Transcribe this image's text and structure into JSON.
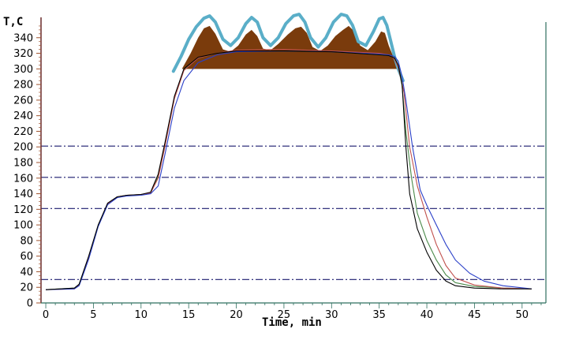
{
  "chart_data": {
    "type": "line",
    "title": "",
    "xlabel": "Time, min",
    "ylabel": "T,C",
    "xlim": [
      -0.5,
      52.5
    ],
    "ylim": [
      0,
      360
    ],
    "x_ticks": [
      0,
      5,
      10,
      15,
      20,
      25,
      30,
      35,
      40,
      45,
      50
    ],
    "y_ticks": [
      0,
      20,
      40,
      60,
      80,
      100,
      120,
      140,
      160,
      180,
      200,
      220,
      240,
      260,
      280,
      300,
      320,
      340
    ],
    "grid": false,
    "legend": "none",
    "reference_lines_y": [
      30,
      121,
      161,
      201
    ],
    "colors": {
      "curve_black": "#000000",
      "curve_blue": "#2a3fc8",
      "curve_red": "#c0504d",
      "curve_green": "#4a8a4a",
      "reference_line": "#1a1a6e",
      "fill_peaks": "#7a3b0c",
      "outline_wave": "#5aaec8"
    },
    "series": [
      {
        "key": "black",
        "x": [
          0,
          3,
          3.5,
          4.5,
          5.5,
          6.5,
          7.5,
          8.5,
          10,
          11,
          11.8,
          12.5,
          13.5,
          14.5,
          16,
          18,
          20,
          25,
          30,
          35,
          36,
          36.6,
          37,
          37.4,
          37.8,
          38.2,
          39,
          40,
          41,
          42,
          43,
          45,
          48,
          51
        ],
        "y": [
          17,
          19,
          24,
          60,
          100,
          128,
          136,
          138,
          139,
          142,
          165,
          205,
          265,
          300,
          315,
          320,
          323,
          323,
          322,
          318,
          317,
          314,
          305,
          280,
          200,
          140,
          95,
          65,
          42,
          28,
          22,
          19,
          18,
          18
        ]
      },
      {
        "key": "blue",
        "x": [
          0,
          3,
          3.5,
          4.5,
          5.5,
          6.5,
          7.5,
          8.5,
          10,
          11,
          11.8,
          12.5,
          13.5,
          14.5,
          16,
          18,
          20,
          25,
          30,
          35,
          36,
          36.6,
          37,
          37.4,
          37.8,
          38.5,
          39.3,
          40,
          41,
          42,
          43,
          44.5,
          46,
          48,
          51
        ],
        "y": [
          17,
          18,
          22,
          56,
          98,
          126,
          135,
          137,
          138,
          140,
          150,
          190,
          250,
          285,
          308,
          318,
          322,
          323,
          322,
          319,
          318,
          316,
          310,
          290,
          260,
          200,
          145,
          125,
          100,
          75,
          55,
          38,
          28,
          22,
          18
        ]
      },
      {
        "key": "red",
        "x": [
          0,
          3,
          3.5,
          4.5,
          5.5,
          6.5,
          7.5,
          8.5,
          10,
          11,
          11.8,
          12.5,
          13.5,
          14.5,
          16,
          18,
          20,
          25,
          30,
          35,
          36,
          36.6,
          37,
          37.6,
          38.2,
          39,
          40,
          41,
          42,
          43,
          45,
          48,
          51
        ],
        "y": [
          17,
          18,
          23,
          58,
          99,
          127,
          136,
          138,
          139,
          141,
          160,
          200,
          262,
          298,
          314,
          320,
          324,
          325,
          323,
          320,
          318,
          313,
          302,
          270,
          200,
          150,
          110,
          75,
          48,
          32,
          23,
          19,
          18
        ]
      },
      {
        "key": "green",
        "x": [
          0,
          3,
          3.5,
          4.5,
          5.5,
          6.5,
          7.5,
          8.5,
          10,
          11,
          11.8,
          12.5,
          13.5,
          14.5,
          16,
          18,
          20,
          25,
          30,
          35,
          36,
          36.6,
          37,
          37.4,
          37.8,
          38.4,
          39,
          40,
          41,
          42,
          43,
          45,
          48,
          51
        ],
        "y": [
          17,
          19,
          24,
          59,
          100,
          127,
          136,
          138,
          139,
          141,
          162,
          203,
          263,
          299,
          314,
          320,
          323,
          323,
          322,
          318,
          317,
          314,
          304,
          278,
          220,
          160,
          115,
          80,
          55,
          36,
          26,
          21,
          19,
          18
        ]
      }
    ],
    "temperature_peaks_fill": {
      "x": [
        14.3,
        15.2,
        16,
        16.6,
        17.2,
        17.8,
        18.6,
        19.4,
        20.2,
        21,
        21.6,
        22.2,
        22.8,
        23.6,
        24.4,
        25.4,
        26.2,
        26.8,
        27.4,
        28,
        28.8,
        29.6,
        30.4,
        31.2,
        31.8,
        32.4,
        33,
        33.8,
        34.6,
        35.2,
        35.6,
        36,
        36.4,
        36.9
      ],
      "y": [
        300,
        320,
        340,
        352,
        355,
        345,
        325,
        322,
        330,
        344,
        350,
        342,
        326,
        324,
        332,
        344,
        352,
        354,
        346,
        328,
        323,
        330,
        342,
        350,
        355,
        348,
        330,
        324,
        335,
        348,
        346,
        330,
        318,
        312
      ]
    },
    "outline_wave": {
      "x": [
        13.4,
        14.2,
        15,
        15.8,
        16.6,
        17.2,
        17.8,
        18.6,
        19.4,
        20.2,
        21,
        21.6,
        22.2,
        22.8,
        23.6,
        24.4,
        25.2,
        26,
        26.6,
        27.2,
        27.8,
        28.6,
        29.4,
        30.2,
        31,
        31.6,
        32.2,
        32.8,
        33.6,
        34.4,
        35,
        35.4,
        35.8,
        36.2,
        36.6,
        37,
        37.5
      ],
      "y": [
        297,
        316,
        338,
        354,
        365,
        368,
        360,
        338,
        330,
        340,
        358,
        366,
        360,
        340,
        330,
        340,
        358,
        368,
        370,
        360,
        340,
        328,
        340,
        360,
        370,
        368,
        356,
        335,
        330,
        348,
        364,
        366,
        356,
        336,
        316,
        300,
        285
      ]
    }
  }
}
